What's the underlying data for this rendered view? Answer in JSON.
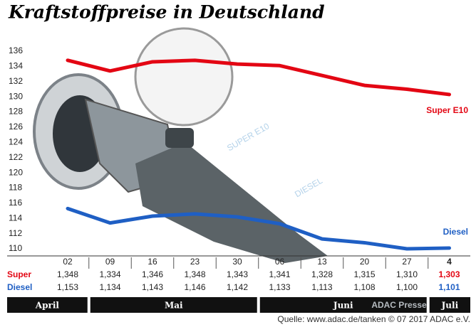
{
  "chart_data": {
    "type": "line",
    "title": "Kraftstoffpreise in Deutschland",
    "categories": [
      "02",
      "09",
      "16",
      "23",
      "30",
      "06",
      "13",
      "20",
      "27",
      "4"
    ],
    "months": [
      "April",
      "Mai",
      "Juni",
      "Juli"
    ],
    "series": [
      {
        "name": "Super E10",
        "row_label": "Super",
        "color": "#e30613",
        "values": [
          134.8,
          133.4,
          134.6,
          134.8,
          134.3,
          134.1,
          132.8,
          131.5,
          131.0,
          130.3
        ],
        "value_labels": [
          "1,348",
          "1,334",
          "1,346",
          "1,348",
          "1,343",
          "1,341",
          "1,328",
          "1,315",
          "1,310",
          "1,303"
        ]
      },
      {
        "name": "Diesel",
        "row_label": "Diesel",
        "color": "#1f5fc4",
        "values": [
          115.3,
          113.4,
          114.3,
          114.6,
          114.2,
          113.3,
          111.3,
          110.8,
          110.0,
          110.1
        ],
        "value_labels": [
          "1,153",
          "1,134",
          "1,143",
          "1,146",
          "1,142",
          "1,133",
          "1,113",
          "1,108",
          "1,100",
          "1,101"
        ]
      }
    ],
    "ylim": [
      109,
      137
    ],
    "yticks": [
      110,
      112,
      114,
      116,
      118,
      120,
      122,
      124,
      126,
      128,
      130,
      132,
      134,
      136
    ],
    "grid": false,
    "illustration_labels": [
      "SUPER E10",
      "DIESEL"
    ],
    "watermark": "ADAC Presse",
    "source": "Quelle: www.adac.de/tanken  © 07 2017  ADAC e.V."
  }
}
